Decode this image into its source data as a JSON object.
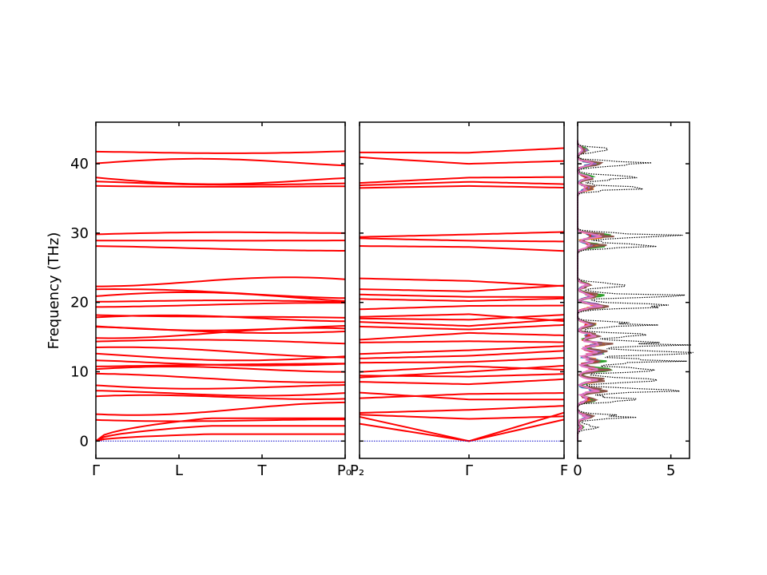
{
  "chart_data": [
    {
      "type": "line",
      "title": "",
      "ylabel": "Frequency (THz)",
      "ylim": [
        -2.5,
        46
      ],
      "yticks": [
        0,
        10,
        20,
        30,
        40
      ],
      "segments": [
        {
          "labels": [
            "Γ",
            "L",
            "T",
            "P₀"
          ],
          "xlim": [
            0,
            3
          ]
        },
        {
          "labels": [
            "P₂",
            "Γ",
            "F"
          ],
          "xlim": [
            0,
            2
          ]
        }
      ],
      "series_color": "#ff0000",
      "acoustic_color": "#0000cc",
      "band_frequencies_at_gamma": [
        0,
        3.2,
        4.5,
        6.0,
        6.8,
        8.2,
        9.3,
        10.0,
        10.8,
        11.4,
        12.3,
        13.1,
        14.4,
        15.6,
        16.1,
        16.6,
        17.5,
        18.3,
        19.5,
        20.2,
        20.8,
        21.6,
        23.1,
        28.0,
        28.9,
        29.8,
        36.8,
        37.4,
        38.0,
        40.0,
        41.6
      ]
    },
    {
      "type": "area",
      "title": "",
      "xlim": [
        0,
        6
      ],
      "xticks": [
        0,
        5
      ],
      "ylim": [
        -2.5,
        46
      ],
      "colors": [
        "#1f77b4",
        "#ff7f0e",
        "#2ca02c",
        "#d62728",
        "#9467bd",
        "#8c564b",
        "#e377c2",
        "#000000"
      ],
      "dos_peaks": [
        {
          "freq": 2.0,
          "total": 0.9
        },
        {
          "freq": 3.5,
          "total": 2.7
        },
        {
          "freq": 6.0,
          "total": 3.4
        },
        {
          "freq": 7.3,
          "total": 5.3
        },
        {
          "freq": 8.8,
          "total": 4.8
        },
        {
          "freq": 10.3,
          "total": 5.4
        },
        {
          "freq": 11.6,
          "total": 4.7
        },
        {
          "freq": 12.8,
          "total": 5.9
        },
        {
          "freq": 14.0,
          "total": 5.3
        },
        {
          "freq": 15.2,
          "total": 4.2
        },
        {
          "freq": 16.8,
          "total": 3.6
        },
        {
          "freq": 19.5,
          "total": 5.6
        },
        {
          "freq": 21.0,
          "total": 4.6
        },
        {
          "freq": 22.5,
          "total": 2.4
        },
        {
          "freq": 28.2,
          "total": 4.7
        },
        {
          "freq": 29.6,
          "total": 5.8
        },
        {
          "freq": 36.5,
          "total": 3.2
        },
        {
          "freq": 38.0,
          "total": 2.9
        },
        {
          "freq": 40.0,
          "total": 4.1
        },
        {
          "freq": 42.0,
          "total": 1.8
        }
      ]
    }
  ]
}
